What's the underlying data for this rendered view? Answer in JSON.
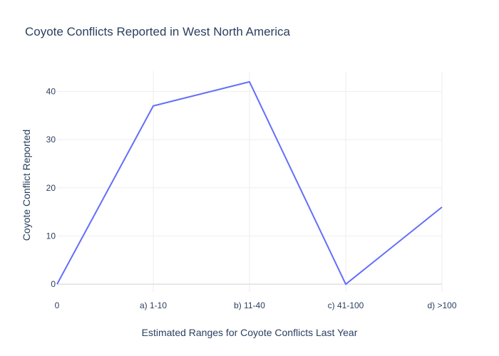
{
  "chart_data": {
    "type": "line",
    "title": "Coyote Conflicts Reported in West North America",
    "xlabel": "Estimated Ranges for Coyote Conflicts Last Year",
    "ylabel": "Coyote Conflict Reported",
    "categories": [
      "0",
      "a) 1-10",
      "b) 11-40",
      "c) 41-100",
      "d) >100"
    ],
    "series": [
      {
        "values": [
          0,
          37,
          42,
          0,
          16
        ],
        "color": "#636efa"
      }
    ],
    "ylim": [
      -1.6,
      44.2
    ],
    "yticks": [
      0,
      10,
      20,
      30,
      40
    ],
    "grid": true,
    "legend": "none"
  }
}
